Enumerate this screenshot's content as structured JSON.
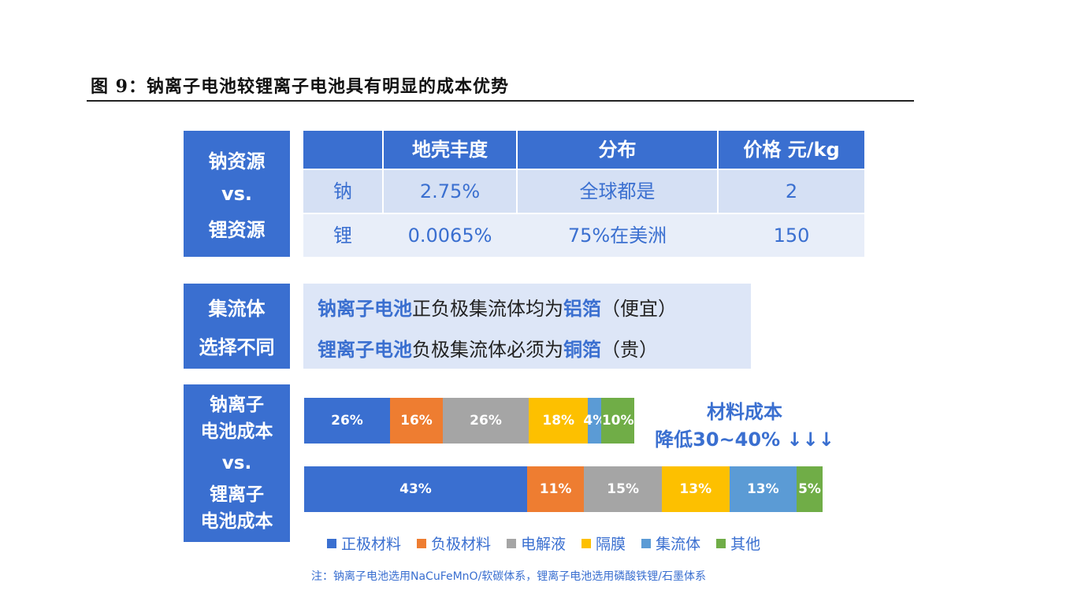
{
  "figure_title": "图 9：钠离子电池较锂离子电池具有明显的成本优势",
  "resource_label": [
    "钠资源",
    "vs.",
    "锂资源"
  ],
  "table": {
    "headers": [
      "",
      "地壳丰度",
      "分布",
      "价格 元/kg"
    ],
    "rows": [
      [
        "钠",
        "2.75%",
        "全球都是",
        "2"
      ],
      [
        "锂",
        "0.0065%",
        "75%在美洲",
        "150"
      ]
    ]
  },
  "collector_label": [
    "集流体",
    "选择不同"
  ],
  "collector_lines": [
    {
      "parts": [
        {
          "t": "钠离子电池",
          "hl": true
        },
        {
          "t": "正负极集流体均为",
          "hl": false
        },
        {
          "t": "铝箔",
          "hl": true
        },
        {
          "t": "（便宜）",
          "hl": false
        }
      ]
    },
    {
      "parts": [
        {
          "t": "锂离子电池",
          "hl": true
        },
        {
          "t": "负极集流体必须为",
          "hl": false
        },
        {
          "t": "铜箔",
          "hl": true
        },
        {
          "t": "（贵）",
          "hl": false
        }
      ]
    }
  ],
  "cost_label": [
    "钠离子",
    "电池成本",
    "vs.",
    "锂离子",
    "电池成本"
  ],
  "cost_note": [
    "材料成本",
    "降低30~40% ↓↓↓"
  ],
  "footnote": "注：钠离子电池选用NaCuFeMnO/软碳体系，锂离子电池选用磷酸铁锂/石墨体系",
  "chart_data": {
    "type": "bar",
    "orientation": "horizontal-stacked",
    "categories": [
      "钠离子电池成本",
      "锂离子电池成本"
    ],
    "series": [
      {
        "name": "正极材料",
        "color": "#3a6fd0",
        "values": [
          26,
          43
        ],
        "labels": [
          "26%",
          "43%"
        ]
      },
      {
        "name": "负极材料",
        "color": "#ee7d31",
        "values": [
          16,
          11
        ],
        "labels": [
          "16%",
          "11%"
        ]
      },
      {
        "name": "电解液",
        "color": "#a5a5a5",
        "values": [
          26,
          15
        ],
        "labels": [
          "26%",
          "15%"
        ]
      },
      {
        "name": "隔膜",
        "color": "#fdc000",
        "values": [
          18,
          13
        ],
        "labels": [
          "18%",
          "13%"
        ]
      },
      {
        "name": "集流体",
        "color": "#5b9bd5",
        "values": [
          4,
          13
        ],
        "labels": [
          "4%",
          "13%"
        ]
      },
      {
        "name": "其他",
        "color": "#70ad47",
        "values": [
          10,
          5
        ],
        "labels": [
          "10%",
          "5%"
        ]
      }
    ],
    "relative_scale": "sodium total ≈ 70% of lithium total"
  }
}
